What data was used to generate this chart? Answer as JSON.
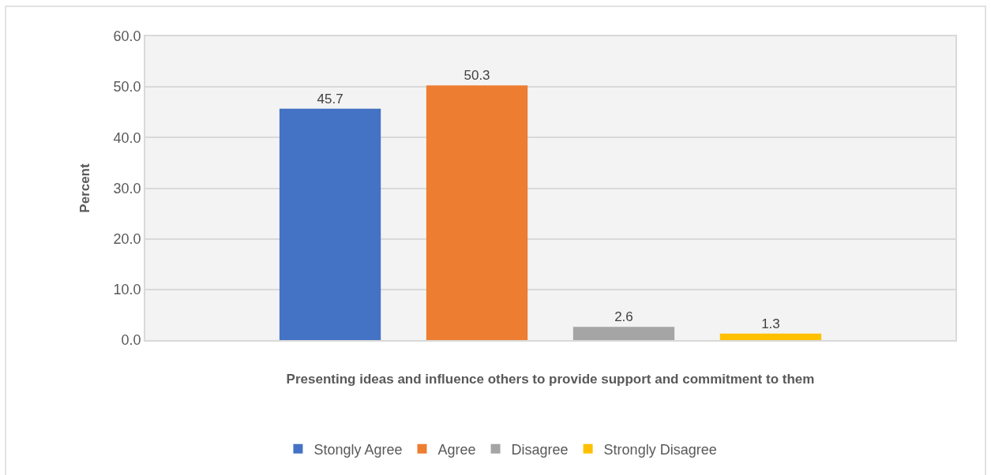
{
  "chart_data": {
    "type": "bar",
    "categories": [
      null
    ],
    "xlabel": "Presenting ideas and influence others to provide support and commitment to them",
    "ylabel": "Percent",
    "series": [
      {
        "name": "Stongly Agree",
        "color": "#4472c4",
        "values": [
          45.7
        ]
      },
      {
        "name": "Agree",
        "color": "#ed7d31",
        "values": [
          50.3
        ]
      },
      {
        "name": "Disagree",
        "color": "#a5a5a5",
        "values": [
          2.6
        ]
      },
      {
        "name": "Strongly Disagree",
        "color": "#ffc000",
        "values": [
          1.3
        ]
      }
    ],
    "ylim": [
      0,
      60
    ],
    "yticks": [
      {
        "value": 0,
        "label": "0.0"
      },
      {
        "value": 10,
        "label": "10.0"
      },
      {
        "value": 20,
        "label": "20.0"
      },
      {
        "value": 30,
        "label": "30.0"
      },
      {
        "value": 40,
        "label": "40.0"
      },
      {
        "value": 50,
        "label": "50.0"
      },
      {
        "value": 60,
        "label": "60.0"
      }
    ],
    "grid": "y",
    "legend": "bottom",
    "data_labels": true,
    "tick_labels": "y"
  }
}
